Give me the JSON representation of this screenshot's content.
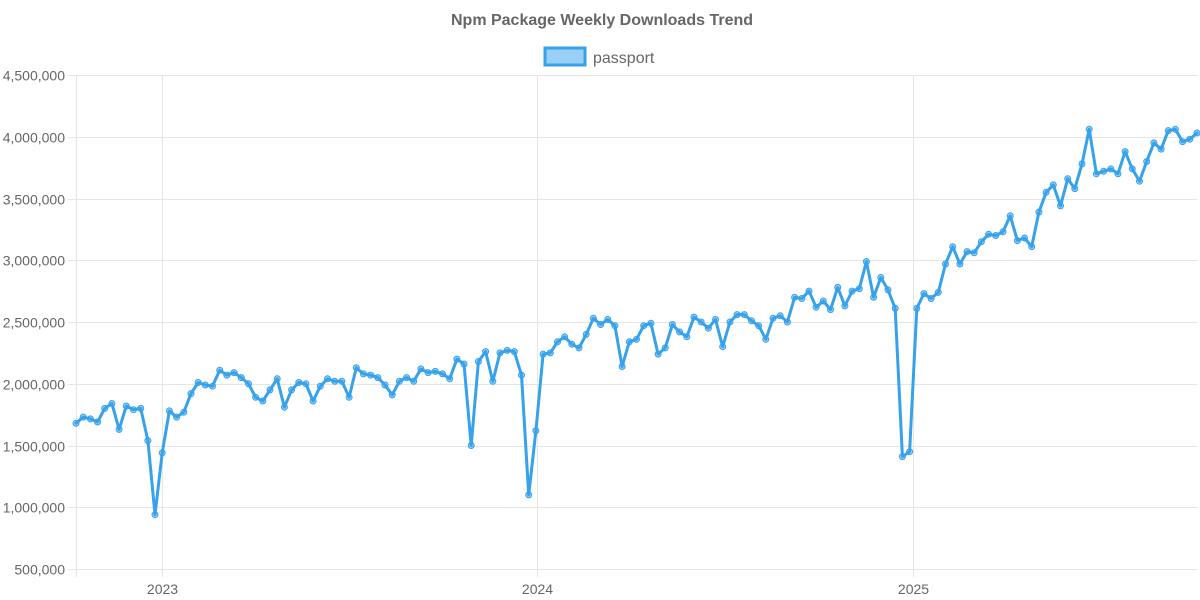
{
  "chart_data": {
    "type": "line",
    "title": "Npm Package Weekly Downloads Trend",
    "xlabel": "",
    "ylabel": "",
    "ylim": [
      500000,
      4500000
    ],
    "y_ticks": [
      "500,000",
      "1,000,000",
      "1,500,000",
      "2,000,000",
      "2,500,000",
      "3,000,000",
      "3,500,000",
      "4,000,000",
      "4,500,000"
    ],
    "y_tick_values": [
      500000,
      1000000,
      1500000,
      2000000,
      2500000,
      3000000,
      3500000,
      4000000,
      4500000
    ],
    "x_ticks": [
      "2023",
      "2024",
      "2025"
    ],
    "x_tick_dates": [
      "2023-01-01",
      "2024-01-01",
      "2025-01-01"
    ],
    "xlim": [
      "2022-10-09",
      "2025-10-05"
    ],
    "grid": true,
    "legend_position": "top",
    "colors": {
      "line": "#36a2eb",
      "fill": "#9ad0f5",
      "grid": "#e6e6e6",
      "text": "#666666"
    },
    "series": [
      {
        "name": "passport",
        "x": [
          "2022-10-09",
          "2022-10-16",
          "2022-10-23",
          "2022-10-30",
          "2022-11-06",
          "2022-11-13",
          "2022-11-20",
          "2022-11-27",
          "2022-12-04",
          "2022-12-11",
          "2022-12-18",
          "2022-12-25",
          "2023-01-01",
          "2023-01-08",
          "2023-01-15",
          "2023-01-22",
          "2023-01-29",
          "2023-02-05",
          "2023-02-12",
          "2023-02-19",
          "2023-02-26",
          "2023-03-05",
          "2023-03-12",
          "2023-03-19",
          "2023-03-26",
          "2023-04-02",
          "2023-04-09",
          "2023-04-16",
          "2023-04-23",
          "2023-04-30",
          "2023-05-07",
          "2023-05-14",
          "2023-05-21",
          "2023-05-28",
          "2023-06-04",
          "2023-06-11",
          "2023-06-18",
          "2023-06-25",
          "2023-07-02",
          "2023-07-09",
          "2023-07-16",
          "2023-07-23",
          "2023-07-30",
          "2023-08-06",
          "2023-08-13",
          "2023-08-20",
          "2023-08-27",
          "2023-09-03",
          "2023-09-10",
          "2023-09-17",
          "2023-09-24",
          "2023-10-01",
          "2023-10-08",
          "2023-10-15",
          "2023-10-22",
          "2023-10-29",
          "2023-11-05",
          "2023-11-12",
          "2023-11-19",
          "2023-11-26",
          "2023-12-03",
          "2023-12-10",
          "2023-12-17",
          "2023-12-24",
          "2023-12-31",
          "2024-01-07",
          "2024-01-14",
          "2024-01-21",
          "2024-01-28",
          "2024-02-04",
          "2024-02-11",
          "2024-02-18",
          "2024-02-25",
          "2024-03-03",
          "2024-03-10",
          "2024-03-17",
          "2024-03-24",
          "2024-03-31",
          "2024-04-07",
          "2024-04-14",
          "2024-04-21",
          "2024-04-28",
          "2024-05-05",
          "2024-05-12",
          "2024-05-19",
          "2024-05-26",
          "2024-06-02",
          "2024-06-09",
          "2024-06-16",
          "2024-06-23",
          "2024-06-30",
          "2024-07-07",
          "2024-07-14",
          "2024-07-21",
          "2024-07-28",
          "2024-08-04",
          "2024-08-11",
          "2024-08-18",
          "2024-08-25",
          "2024-09-01",
          "2024-09-08",
          "2024-09-15",
          "2024-09-22",
          "2024-09-29",
          "2024-10-06",
          "2024-10-13",
          "2024-10-20",
          "2024-10-27",
          "2024-11-03",
          "2024-11-10",
          "2024-11-17",
          "2024-11-24",
          "2024-12-01",
          "2024-12-08",
          "2024-12-15",
          "2024-12-22",
          "2024-12-29",
          "2025-01-05",
          "2025-01-12",
          "2025-01-19",
          "2025-01-26",
          "2025-02-02",
          "2025-02-09",
          "2025-02-16",
          "2025-02-23",
          "2025-03-02",
          "2025-03-09",
          "2025-03-16",
          "2025-03-23",
          "2025-03-30",
          "2025-04-06",
          "2025-04-13",
          "2025-04-20",
          "2025-04-27",
          "2025-05-04",
          "2025-05-11",
          "2025-05-18",
          "2025-05-25",
          "2025-06-01",
          "2025-06-08",
          "2025-06-15",
          "2025-06-22",
          "2025-06-29",
          "2025-07-06",
          "2025-07-13",
          "2025-07-20",
          "2025-07-27",
          "2025-08-03",
          "2025-08-10",
          "2025-08-17",
          "2025-08-24",
          "2025-08-31",
          "2025-09-07",
          "2025-09-14",
          "2025-09-21",
          "2025-09-28",
          "2025-10-05"
        ],
        "values": [
          1680000,
          1730000,
          1715000,
          1690000,
          1800000,
          1840000,
          1630000,
          1820000,
          1790000,
          1800000,
          1540000,
          940000,
          1440000,
          1780000,
          1730000,
          1770000,
          1920000,
          2010000,
          1990000,
          1980000,
          2110000,
          2070000,
          2090000,
          2050000,
          2000000,
          1890000,
          1860000,
          1950000,
          2040000,
          1810000,
          1950000,
          2010000,
          2000000,
          1860000,
          1980000,
          2040000,
          2020000,
          2020000,
          1890000,
          2130000,
          2080000,
          2070000,
          2050000,
          1990000,
          1910000,
          2020000,
          2050000,
          2020000,
          2120000,
          2090000,
          2100000,
          2080000,
          2040000,
          2200000,
          2160000,
          1500000,
          2180000,
          2260000,
          2020000,
          2250000,
          2270000,
          2260000,
          2070000,
          1100000,
          1620000,
          2240000,
          2250000,
          2340000,
          2380000,
          2320000,
          2290000,
          2400000,
          2530000,
          2480000,
          2520000,
          2470000,
          2140000,
          2340000,
          2360000,
          2470000,
          2490000,
          2240000,
          2290000,
          2480000,
          2420000,
          2380000,
          2540000,
          2500000,
          2450000,
          2520000,
          2300000,
          2500000,
          2560000,
          2560000,
          2510000,
          2470000,
          2360000,
          2530000,
          2550000,
          2500000,
          2700000,
          2690000,
          2750000,
          2620000,
          2670000,
          2600000,
          2780000,
          2630000,
          2750000,
          2770000,
          2990000,
          2700000,
          2860000,
          2760000,
          2610000,
          1410000,
          1450000,
          2610000,
          2730000,
          2690000,
          2740000,
          2970000,
          3110000,
          2970000,
          3070000,
          3060000,
          3150000,
          3210000,
          3200000,
          3230000,
          3360000,
          3160000,
          3180000,
          3110000,
          3390000,
          3550000,
          3610000,
          3440000,
          3660000,
          3580000,
          3780000,
          4060000,
          3700000,
          3720000,
          3740000,
          3700000,
          3880000,
          3740000,
          3640000,
          3800000,
          3950000,
          3900000,
          4050000,
          4060000,
          3960000,
          3980000,
          4030000
        ]
      }
    ]
  }
}
